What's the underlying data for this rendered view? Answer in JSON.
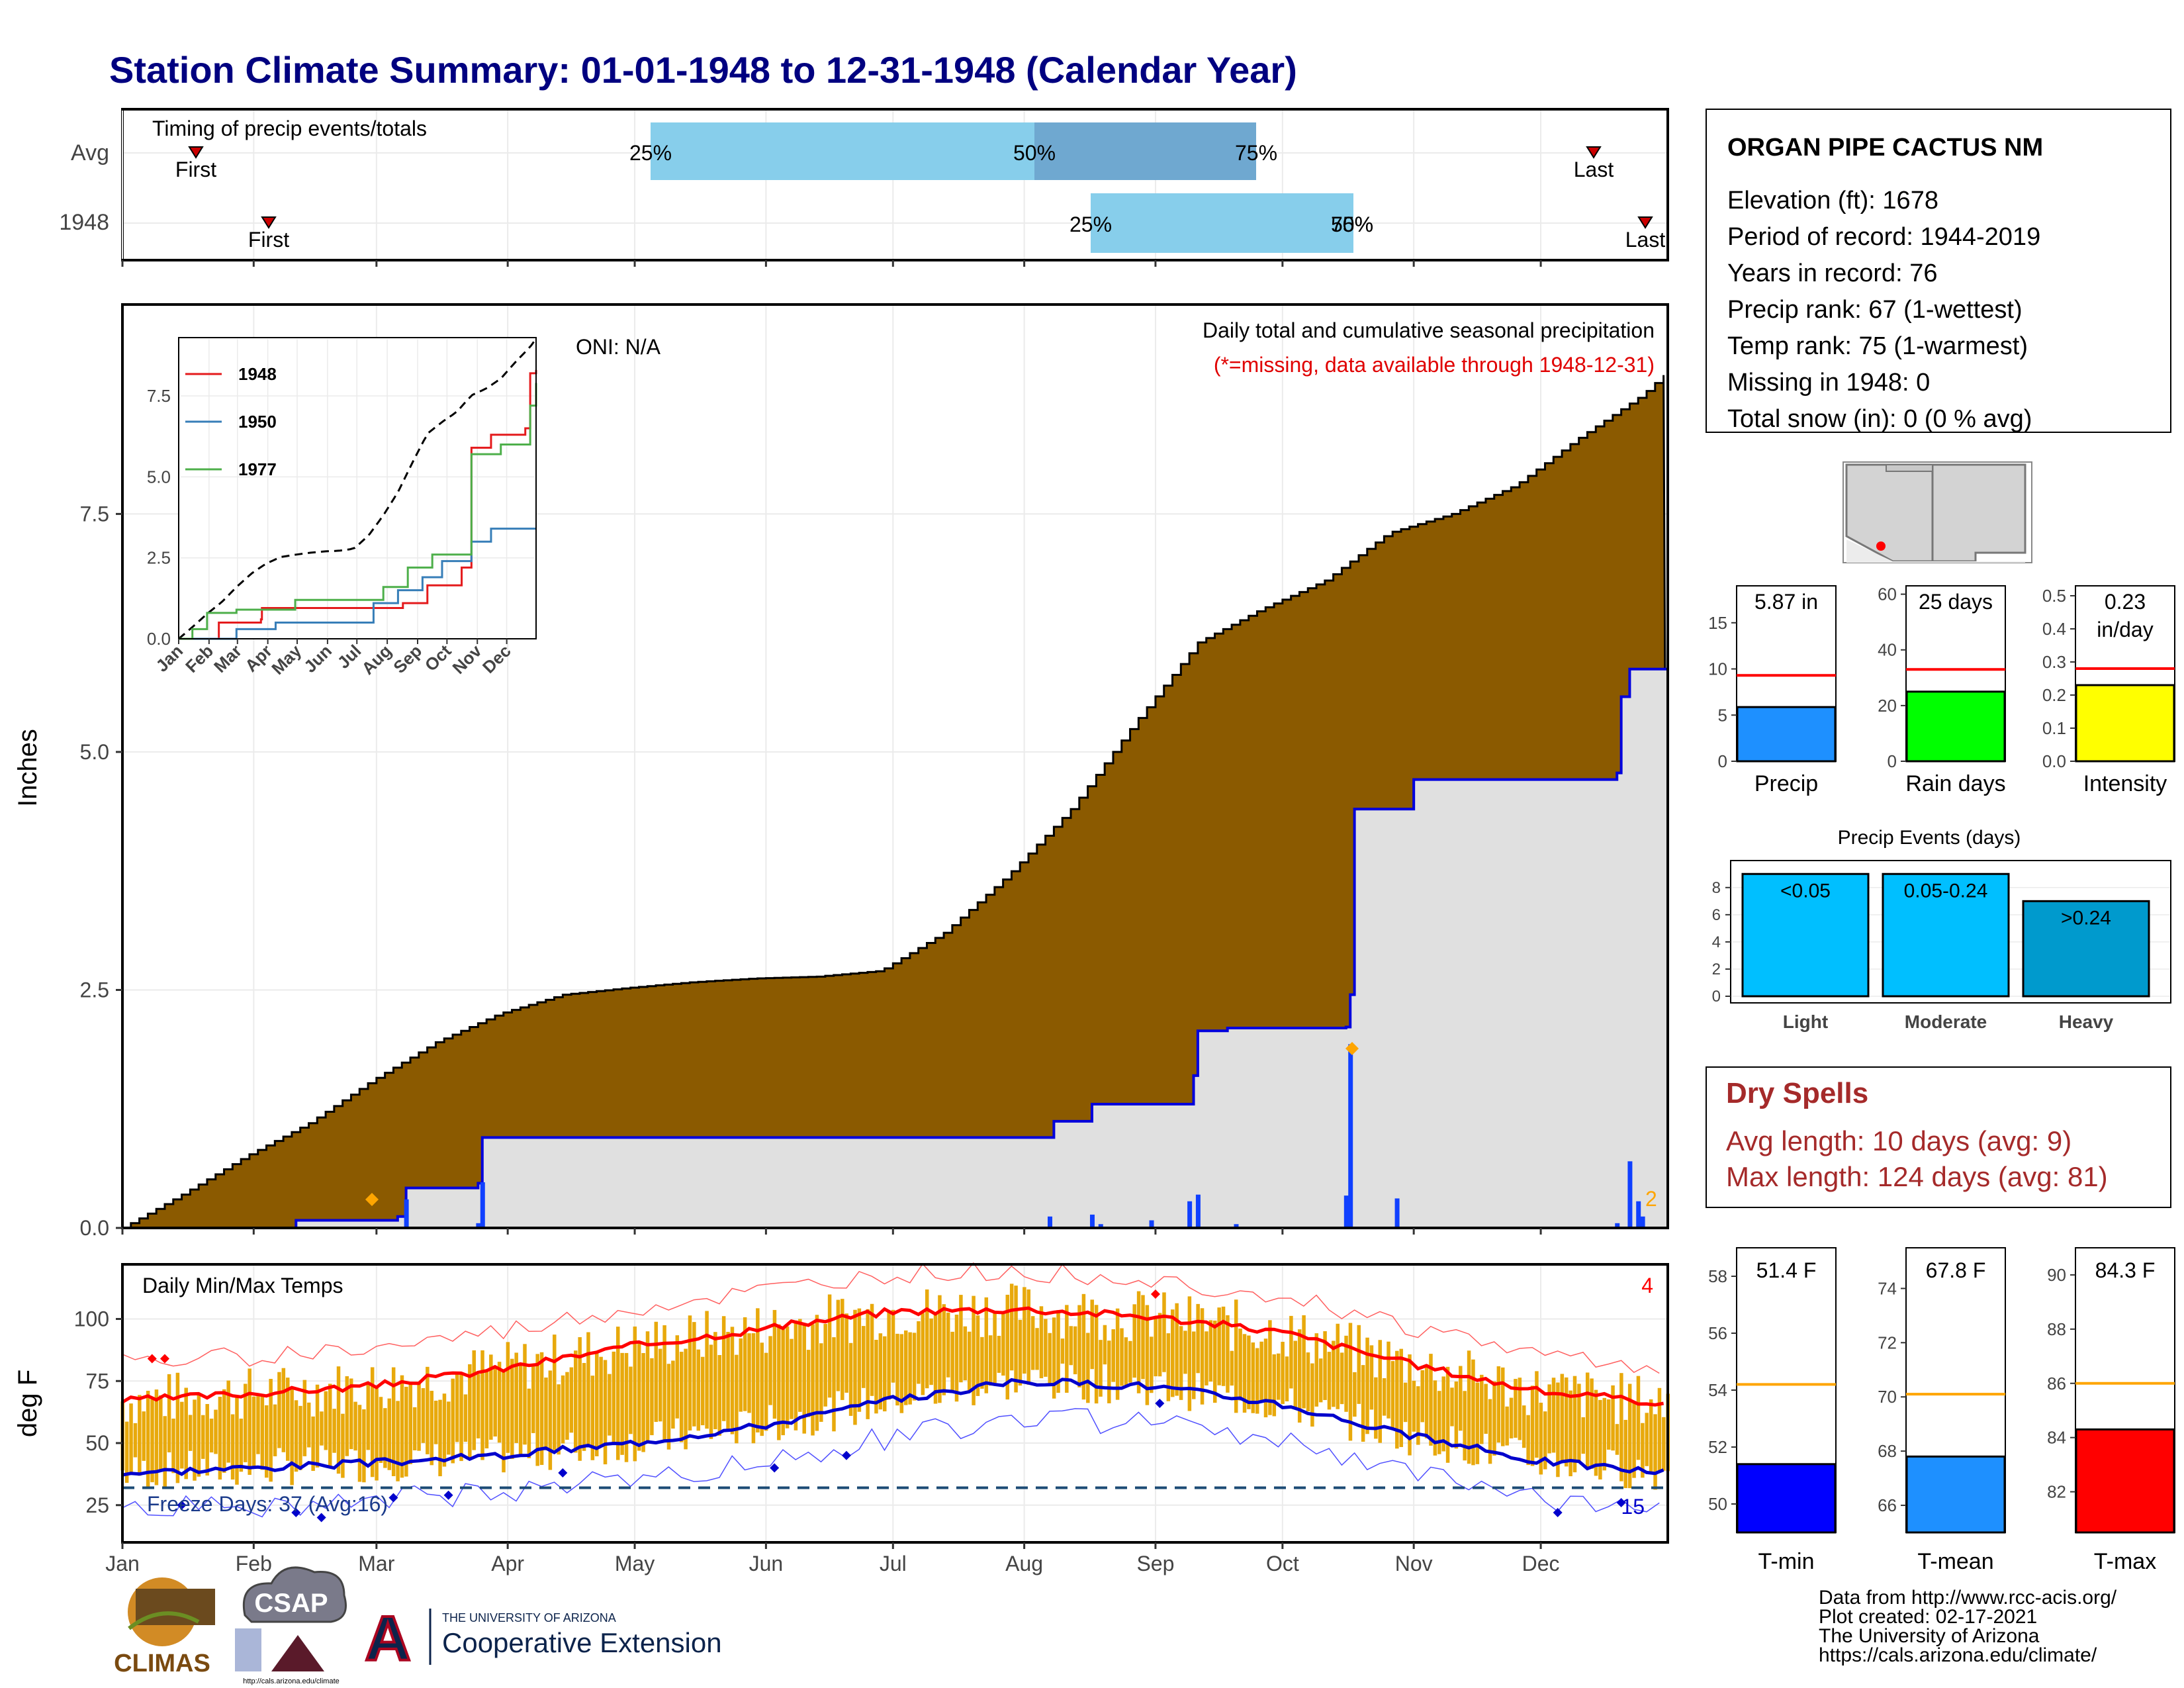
{
  "title": "Station Climate Summary: 01-01-1948 to 12-31-1948 (Calendar Year)",
  "timing": {
    "label": "Timing of precip events/totals",
    "rows": [
      {
        "name": "Avg",
        "first_label": "First",
        "last_label": "Last",
        "p25": "25%",
        "p50": "50%",
        "p75": "75%"
      },
      {
        "name": "1948",
        "first_label": "First",
        "last_label": "Last",
        "p25": "25%",
        "p50": "50%",
        "p75": "75%"
      }
    ],
    "colors": {
      "bar_light": "#87ceeb",
      "bar_dark": "#6fa8d0",
      "marker": "#cc0000"
    }
  },
  "months": [
    "Jan",
    "Feb",
    "Mar",
    "Apr",
    "May",
    "Jun",
    "Jul",
    "Aug",
    "Sep",
    "Oct",
    "Nov",
    "Dec"
  ],
  "precip_panel": {
    "ylabel": "Inches",
    "yticks": [
      "0.0",
      "2.5",
      "5.0",
      "7.5"
    ],
    "oni": "ONI: N/A",
    "caption": "Daily total and cumulative seasonal precipitation",
    "missing_note": "(*=missing, data available through 1948-12-31)",
    "corner_count": "2",
    "colors": {
      "avg_fill": "#8b5a00",
      "obs_fill": "#e0e0e0",
      "obs_line": "#0000dd",
      "daily_bar": "#1040ff"
    }
  },
  "inset": {
    "yticks": [
      "0.0",
      "2.5",
      "5.0",
      "7.5"
    ],
    "months": [
      "Jan",
      "Feb",
      "Mar",
      "Apr",
      "May",
      "Jun",
      "Jul",
      "Aug",
      "Sep",
      "Oct",
      "Nov",
      "Dec"
    ],
    "legend": [
      {
        "label": "1948",
        "color": "#e41a1c"
      },
      {
        "label": "1950",
        "color": "#377eb8"
      },
      {
        "label": "1977",
        "color": "#4daf4a"
      }
    ]
  },
  "temp_panel": {
    "ylabel": "deg F",
    "label": "Daily Min/Max Temps",
    "yticks": [
      "25",
      "50",
      "75",
      "100"
    ],
    "freeze_label": "Freeze Days: 37 (Avg:16)",
    "count_red": "4",
    "count_blue": "15",
    "colors": {
      "bars": "#e8a90c",
      "max_line": "#ff0000",
      "min_line": "#0000cc"
    }
  },
  "station": {
    "name": "ORGAN PIPE CACTUS NM",
    "lines": [
      "Elevation (ft): 1678",
      "Period of record: 1944-2019",
      "Years in record: 76",
      "Precip rank: 67 (1-wettest)",
      "Temp rank: 75 (1-warmest)",
      "Missing in 1948: 0",
      "Total snow (in): 0 (0 % avg)"
    ]
  },
  "small_bars": [
    {
      "name": "Precip",
      "value_label": "5.87 in",
      "value": 5.87,
      "avg": 9.3,
      "ymax": 19,
      "ticks": [
        "0",
        "5",
        "10",
        "15"
      ],
      "color": "#1e90ff"
    },
    {
      "name": "Rain days",
      "value_label": "25 days",
      "value": 25,
      "avg": 33,
      "ymax": 63,
      "ticks": [
        "0",
        "20",
        "40",
        "60"
      ],
      "color": "#00ff00"
    },
    {
      "name": "Intensity",
      "value_label": "0.23\nin/day",
      "value": 0.23,
      "avg": 0.28,
      "ymax": 0.53,
      "ticks": [
        "0.0",
        "0.1",
        "0.2",
        "0.3",
        "0.4",
        "0.5"
      ],
      "color": "#ffff00"
    }
  ],
  "precip_events": {
    "title": "Precip Events (days)",
    "yticks": [
      "0",
      "2",
      "4",
      "6",
      "8"
    ],
    "bars": [
      {
        "label": "<0.05",
        "category": "Light",
        "value": 9,
        "color": "#00bfff"
      },
      {
        "label": "0.05-0.24",
        "category": "Moderate",
        "value": 9,
        "color": "#00bfff"
      },
      {
        "label": ">0.24",
        "category": "Heavy",
        "value": 7,
        "color": "#009acd"
      }
    ]
  },
  "dry_spells": {
    "title": "Dry Spells",
    "avg": "Avg length: 10 days (avg: 9)",
    "max": "Max length: 124 days (avg: 81)",
    "color": "#a52a2a"
  },
  "temp_bars": [
    {
      "name": "T-min",
      "value_label": "51.4 F",
      "value": 51.4,
      "avg": 54.2,
      "ymin": 49,
      "ymax": 59,
      "ticks": [
        "50",
        "52",
        "54",
        "56",
        "58"
      ],
      "color": "#0000ff"
    },
    {
      "name": "T-mean",
      "value_label": "67.8 F",
      "value": 67.8,
      "avg": 70.1,
      "ymin": 65,
      "ymax": 75.5,
      "ticks": [
        "66",
        "68",
        "70",
        "72",
        "74"
      ],
      "color": "#1e90ff"
    },
    {
      "name": "T-max",
      "value_label": "84.3 F",
      "value": 84.3,
      "avg": 86,
      "ymin": 80.5,
      "ymax": 91,
      "ticks": [
        "82",
        "84",
        "86",
        "88",
        "90"
      ],
      "color": "#ff0000"
    }
  ],
  "footer": {
    "lines": [
      "Data from http://www.rcc-acis.org/",
      "Plot created: 02-17-2021",
      "The University of Arizona",
      "https://cals.arizona.edu/climate/"
    ],
    "logo_climas": "CLIMAS",
    "logo_csap": "CSAP",
    "logo_csap_url": "http://cals.arizona.edu/climate",
    "ua_small": "THE UNIVERSITY OF ARIZONA",
    "ua_big": "Cooperative Extension"
  },
  "chart_data": {
    "type": "area",
    "title": "Station Climate Summary: 01-01-1948 to 12-31-1948 (Calendar Year)",
    "ylabel": "Inches",
    "ylim": [
      0,
      9.7
    ],
    "x_unit": "day of year",
    "series": [
      {
        "name": "avg cumulative",
        "x": [
          1,
          15,
          30,
          45,
          60,
          75,
          90,
          105,
          120,
          135,
          150,
          165,
          180,
          195,
          210,
          225,
          240,
          255,
          270,
          285,
          300,
          315,
          330,
          345,
          360,
          366
        ],
        "values": [
          0.0,
          0.35,
          0.75,
          1.1,
          1.55,
          1.95,
          2.25,
          2.45,
          2.52,
          2.58,
          2.62,
          2.64,
          2.7,
          3.1,
          3.7,
          4.4,
          5.3,
          6.15,
          6.5,
          6.8,
          7.3,
          7.5,
          7.8,
          8.3,
          8.75,
          9.0
        ]
      },
      {
        "name": "1948 cumulative",
        "steps": [
          [
            1,
            0.0
          ],
          [
            42,
            0.08
          ],
          [
            66,
            0.12
          ],
          [
            68,
            0.42
          ],
          [
            85,
            0.47
          ],
          [
            86,
            0.95
          ],
          [
            220,
            0.95
          ],
          [
            221,
            1.12
          ],
          [
            230,
            1.3
          ],
          [
            254,
            1.6
          ],
          [
            255,
            2.07
          ],
          [
            262,
            2.1
          ],
          [
            290,
            2.11
          ],
          [
            291,
            2.45
          ],
          [
            292,
            4.4
          ],
          [
            306,
            4.71
          ],
          [
            354,
            4.78
          ],
          [
            355,
            5.58
          ],
          [
            357,
            5.87
          ],
          [
            366,
            5.87
          ]
        ]
      },
      {
        "name": "daily precip",
        "points": [
          [
            68,
            0.3
          ],
          [
            85,
            0.05
          ],
          [
            86,
            0.48
          ],
          [
            220,
            0.12
          ],
          [
            230,
            0.14
          ],
          [
            232,
            0.04
          ],
          [
            244,
            0.08
          ],
          [
            253,
            0.28
          ],
          [
            255,
            0.35
          ],
          [
            264,
            0.04
          ],
          [
            290,
            0.34
          ],
          [
            291,
            1.93
          ],
          [
            302,
            0.31
          ],
          [
            354,
            0.05
          ],
          [
            357,
            0.7
          ],
          [
            359,
            0.28
          ],
          [
            360,
            0.12
          ]
        ]
      }
    ],
    "temp": {
      "ylabel": "deg F",
      "ylim": [
        10,
        122
      ],
      "avg_max": {
        "x": [
          1,
          31,
          60,
          91,
          121,
          152,
          182,
          213,
          244,
          274,
          305,
          335,
          366
        ],
        "values": [
          67,
          70,
          73,
          80,
          89,
          96,
          103,
          104,
          101,
          95,
          82,
          71,
          66
        ]
      },
      "avg_min": {
        "x": [
          1,
          31,
          60,
          91,
          121,
          152,
          182,
          213,
          244,
          274,
          305,
          335,
          366
        ],
        "values": [
          38,
          40,
          42,
          45,
          50,
          57,
          67,
          75,
          73,
          66,
          53,
          43,
          38
        ]
      },
      "freeze_line": 32
    }
  }
}
